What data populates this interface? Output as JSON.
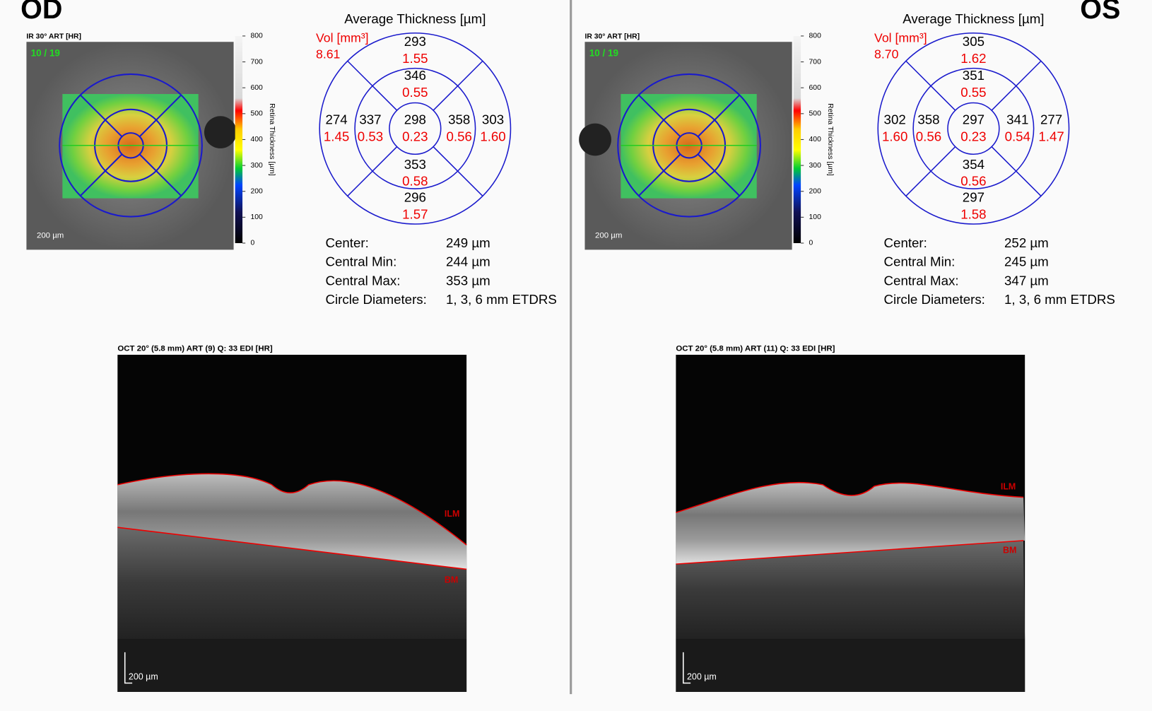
{
  "panels": [
    {
      "eye": "OD",
      "ir_header": "IR 30° ART [HR]",
      "frame": "10 / 19",
      "ir_scale": "200 µm",
      "colorbar_ticks": [
        "800",
        "700",
        "600",
        "500",
        "400",
        "300",
        "200",
        "100",
        "0"
      ],
      "colorbar_label": "Retina Thickness [µm]",
      "thickness_title": "Average Thickness [µm]",
      "vol_label": "Vol [mm³]",
      "vol_total": "8.61",
      "sectors": [
        {
          "thickness": "293",
          "volume": "1.55"
        },
        {
          "thickness": "346",
          "volume": "0.55"
        },
        {
          "thickness": "274",
          "volume": "1.45"
        },
        {
          "thickness": "337",
          "volume": "0.53"
        },
        {
          "thickness": "298",
          "volume": "0.23"
        },
        {
          "thickness": "358",
          "volume": "0.56"
        },
        {
          "thickness": "303",
          "volume": "1.60"
        },
        {
          "thickness": "353",
          "volume": "0.58"
        },
        {
          "thickness": "296",
          "volume": "1.57"
        }
      ],
      "stats": [
        [
          "Center:",
          "249 µm"
        ],
        [
          "Central Min:",
          "244 µm"
        ],
        [
          "Central Max:",
          "353 µm"
        ],
        [
          "Circle Diameters:",
          "1, 3, 6 mm ETDRS"
        ]
      ],
      "oct_header": "OCT 20° (5.8 mm) ART (9) Q: 33 EDI [HR]",
      "ilm": "ILM",
      "bm": "BM",
      "oct_scale": "200 µm"
    },
    {
      "eye": "OS",
      "ir_header": "IR 30° ART [HR]",
      "frame": "10 / 19",
      "ir_scale": "200 µm",
      "colorbar_ticks": [
        "800",
        "700",
        "600",
        "500",
        "400",
        "300",
        "200",
        "100",
        "0"
      ],
      "colorbar_label": "Retina Thickness [µm]",
      "thickness_title": "Average Thickness [µm]",
      "vol_label": "Vol [mm³]",
      "vol_total": "8.70",
      "sectors": [
        {
          "thickness": "305",
          "volume": "1.62"
        },
        {
          "thickness": "351",
          "volume": "0.55"
        },
        {
          "thickness": "302",
          "volume": "1.60"
        },
        {
          "thickness": "358",
          "volume": "0.56"
        },
        {
          "thickness": "297",
          "volume": "0.23"
        },
        {
          "thickness": "341",
          "volume": "0.54"
        },
        {
          "thickness": "277",
          "volume": "1.47"
        },
        {
          "thickness": "354",
          "volume": "0.56"
        },
        {
          "thickness": "297",
          "volume": "1.58"
        }
      ],
      "stats": [
        [
          "Center:",
          "252 µm"
        ],
        [
          "Central Min:",
          "245 µm"
        ],
        [
          "Central Max:",
          "347 µm"
        ],
        [
          "Circle Diameters:",
          "1, 3, 6 mm ETDRS"
        ]
      ],
      "oct_header": "OCT 20° (5.8 mm) ART (11) Q: 33 EDI [HR]",
      "ilm": "ILM",
      "bm": "BM",
      "oct_scale": "200 µm"
    }
  ]
}
